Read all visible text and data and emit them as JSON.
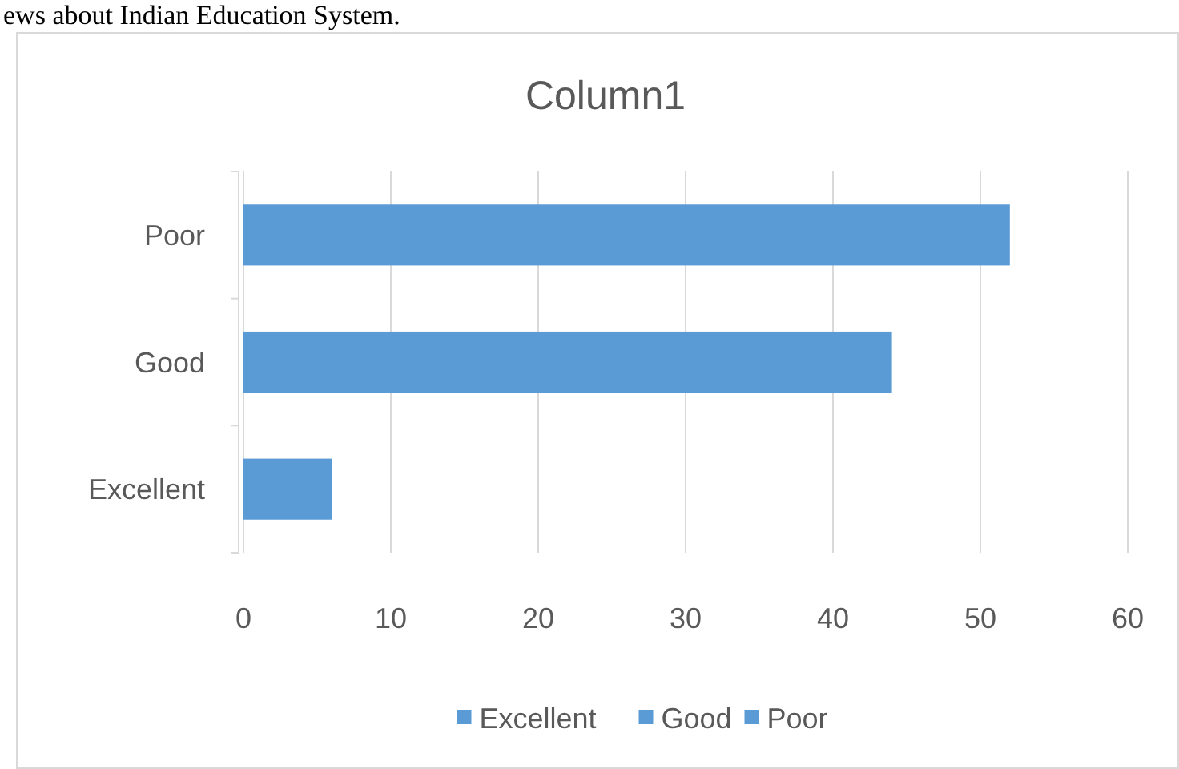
{
  "chart_data": {
    "type": "bar",
    "orientation": "horizontal",
    "stacked": true,
    "title": "Column1",
    "annotations": [
      "ews about Indian Education System."
    ],
    "categories": [
      "Poor",
      "Good",
      "Excellent"
    ],
    "series": [
      {
        "name": "Excellent",
        "color": "#5b9bd5",
        "values": [
          null,
          null,
          6
        ]
      },
      {
        "name": "Good",
        "color": "#5b9bd5",
        "values": [
          null,
          44,
          null
        ]
      },
      {
        "name": "Poor",
        "color": "#5b9bd5",
        "values": [
          52,
          null,
          null
        ]
      }
    ],
    "xlim": [
      0,
      60
    ],
    "xticks": [
      0,
      10,
      20,
      30,
      40,
      50,
      60
    ],
    "grid": "x",
    "legend": "bottom"
  }
}
